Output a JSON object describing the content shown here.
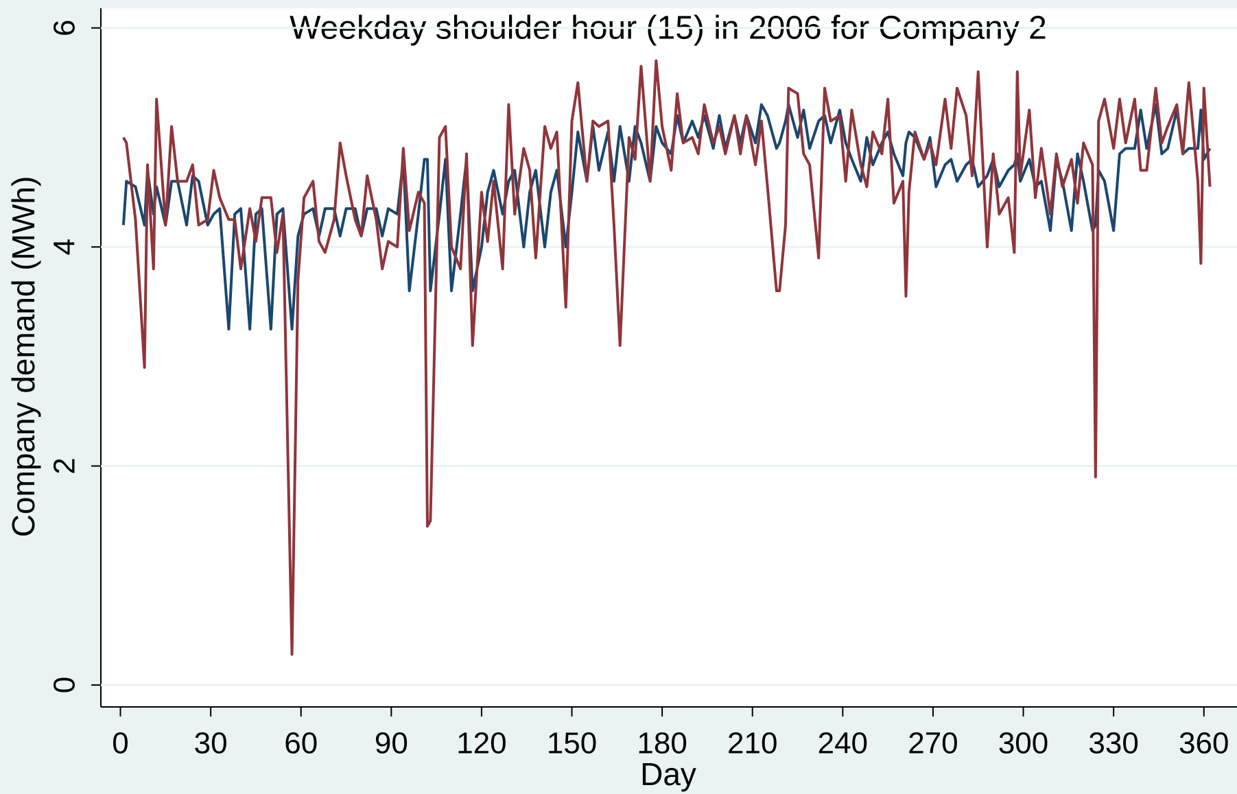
{
  "chart_data": {
    "type": "line",
    "title": "Weekday shoulder hour (15) in 2006 for Company 2",
    "x_label": "Day",
    "y_label": "Company demand (MWh)",
    "x": [
      1,
      2,
      5,
      8,
      9,
      11,
      12,
      15,
      17,
      19,
      22,
      24,
      26,
      29,
      31,
      33,
      36,
      38,
      40,
      43,
      45,
      47,
      50,
      52,
      54,
      57,
      59,
      61,
      64,
      66,
      68,
      71,
      73,
      75,
      78,
      80,
      82,
      85,
      87,
      89,
      92,
      94,
      96,
      99,
      101,
      102,
      103,
      106,
      108,
      110,
      113,
      115,
      117,
      120,
      122,
      124,
      127,
      129,
      131,
      134,
      136,
      138,
      141,
      143,
      145,
      148,
      150,
      152,
      155,
      157,
      159,
      162,
      164,
      166,
      169,
      171,
      173,
      176,
      178,
      180,
      183,
      185,
      187,
      190,
      192,
      194,
      197,
      199,
      201,
      204,
      206,
      208,
      211,
      213,
      215,
      218,
      219,
      221,
      222,
      225,
      227,
      229,
      232,
      234,
      236,
      239,
      241,
      243,
      246,
      248,
      250,
      253,
      255,
      257,
      260,
      261,
      262,
      264,
      267,
      269,
      271,
      274,
      276,
      278,
      281,
      283,
      285,
      288,
      290,
      292,
      295,
      297,
      298,
      299,
      302,
      304,
      306,
      309,
      311,
      313,
      316,
      318,
      320,
      323,
      324,
      325,
      327,
      330,
      332,
      334,
      337,
      339,
      341,
      344,
      346,
      348,
      351,
      353,
      355,
      358,
      359,
      360,
      362
    ],
    "series": [
      {
        "color": "#1a476f",
        "values": [
          4.2,
          4.6,
          4.55,
          4.2,
          4.7,
          4.3,
          4.55,
          4.2,
          4.6,
          4.6,
          4.2,
          4.65,
          4.6,
          4.2,
          4.3,
          4.35,
          3.25,
          4.3,
          4.35,
          3.25,
          4.3,
          4.35,
          3.25,
          4.3,
          4.35,
          3.25,
          4.1,
          4.3,
          4.35,
          4.1,
          4.35,
          4.35,
          4.1,
          4.35,
          4.35,
          4.1,
          4.35,
          4.35,
          4.1,
          4.35,
          4.3,
          4.8,
          3.6,
          4.3,
          4.8,
          4.8,
          3.6,
          4.3,
          4.8,
          3.6,
          4.3,
          4.8,
          3.6,
          4.0,
          4.5,
          4.7,
          4.3,
          4.6,
          4.7,
          4.0,
          4.5,
          4.7,
          4.0,
          4.5,
          4.7,
          4.0,
          4.5,
          5.05,
          4.6,
          5.1,
          4.7,
          5.05,
          4.6,
          5.1,
          4.6,
          5.1,
          4.95,
          4.6,
          5.1,
          4.95,
          4.85,
          5.2,
          4.95,
          5.15,
          5.0,
          5.2,
          4.9,
          5.2,
          4.9,
          5.2,
          4.95,
          5.2,
          4.95,
          5.3,
          5.2,
          4.9,
          4.95,
          5.15,
          5.3,
          5.0,
          5.25,
          4.9,
          5.15,
          5.2,
          4.95,
          5.25,
          4.95,
          4.8,
          4.6,
          5.0,
          4.75,
          4.95,
          5.05,
          4.85,
          4.65,
          4.95,
          5.05,
          5.0,
          4.8,
          5.0,
          4.55,
          4.75,
          4.8,
          4.6,
          4.75,
          4.8,
          4.55,
          4.65,
          4.8,
          4.55,
          4.7,
          4.75,
          4.85,
          4.6,
          4.8,
          4.55,
          4.6,
          4.15,
          4.8,
          4.6,
          4.15,
          4.85,
          4.6,
          4.15,
          4.2,
          4.7,
          4.6,
          4.15,
          4.85,
          4.9,
          4.9,
          5.25,
          4.9,
          5.3,
          4.85,
          4.9,
          5.25,
          4.85,
          4.9,
          4.9,
          5.25,
          4.8,
          4.9
        ]
      },
      {
        "color": "#90353b",
        "values": [
          5.0,
          4.95,
          4.25,
          2.9,
          4.75,
          3.8,
          5.35,
          4.2,
          5.1,
          4.6,
          4.6,
          4.75,
          4.2,
          4.25,
          4.7,
          4.45,
          4.25,
          4.25,
          3.8,
          4.35,
          4.05,
          4.45,
          4.45,
          3.95,
          4.3,
          0.28,
          3.7,
          4.45,
          4.6,
          4.05,
          3.95,
          4.25,
          4.95,
          4.65,
          4.25,
          4.1,
          4.65,
          4.25,
          3.8,
          4.05,
          4.0,
          4.9,
          4.15,
          4.5,
          4.4,
          1.45,
          1.5,
          5.0,
          5.1,
          4.0,
          3.8,
          4.85,
          3.1,
          4.5,
          4.05,
          4.6,
          3.8,
          5.3,
          4.3,
          4.9,
          4.7,
          3.9,
          5.1,
          4.9,
          5.05,
          3.45,
          5.15,
          5.5,
          4.6,
          5.15,
          5.1,
          5.15,
          4.2,
          3.1,
          5.0,
          4.8,
          5.65,
          4.6,
          5.7,
          5.1,
          4.7,
          5.4,
          4.95,
          5.0,
          4.85,
          5.3,
          4.95,
          5.1,
          4.85,
          5.2,
          4.85,
          5.2,
          4.75,
          5.15,
          4.55,
          3.6,
          3.6,
          4.2,
          5.45,
          5.4,
          4.85,
          4.75,
          3.9,
          5.45,
          5.15,
          5.2,
          4.6,
          5.25,
          4.75,
          4.55,
          5.05,
          4.85,
          5.35,
          4.4,
          4.6,
          3.55,
          4.5,
          5.05,
          4.8,
          4.95,
          4.75,
          5.35,
          4.9,
          5.45,
          5.2,
          4.65,
          5.6,
          4.0,
          4.85,
          4.3,
          4.45,
          3.95,
          5.6,
          4.65,
          5.25,
          4.45,
          4.9,
          4.3,
          4.85,
          4.55,
          4.8,
          4.4,
          4.95,
          4.75,
          1.9,
          5.15,
          5.35,
          4.9,
          5.35,
          4.95,
          5.35,
          4.7,
          4.7,
          5.45,
          4.95,
          5.1,
          5.3,
          4.85,
          5.5,
          4.6,
          3.85,
          5.45,
          4.55
        ]
      }
    ],
    "xlim": [
      -6.5,
      371
    ],
    "ylim": [
      -0.2,
      6.18
    ],
    "xticks": [
      0,
      30,
      60,
      90,
      120,
      150,
      180,
      210,
      240,
      270,
      300,
      330,
      360
    ],
    "yticks": [
      0,
      2,
      4,
      6
    ],
    "grid": true
  }
}
